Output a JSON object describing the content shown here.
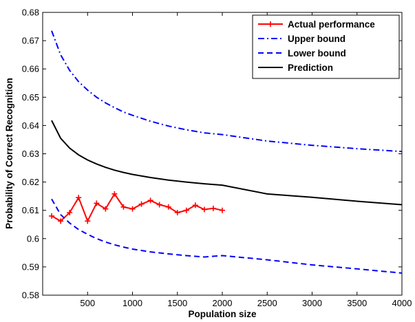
{
  "chart_data": {
    "type": "line",
    "xlabel": "Population size",
    "ylabel": "Probability of Correct Recognition",
    "xlim": [
      0,
      4000
    ],
    "ylim": [
      0.58,
      0.68
    ],
    "x_ticks": [
      500,
      1000,
      1500,
      2000,
      2500,
      3000,
      3500,
      4000
    ],
    "x_tick_labels": [
      "500",
      "1000",
      "1500",
      "2000",
      "2500",
      "3000",
      "3500",
      "4000"
    ],
    "y_ticks": [
      0.58,
      0.59,
      0.6,
      0.61,
      0.62,
      0.63,
      0.64,
      0.65,
      0.66,
      0.67,
      0.68
    ],
    "y_tick_labels": [
      "0.58",
      "0.59",
      "0.6",
      "0.61",
      "0.62",
      "0.63",
      "0.64",
      "0.65",
      "0.66",
      "0.67",
      "0.68"
    ],
    "grid": false,
    "legend_position": "top-right",
    "series": [
      {
        "name": "Actual performance",
        "color": "#ff0000",
        "style": "solid-plus-markers",
        "x": [
          100,
          200,
          300,
          400,
          500,
          600,
          700,
          800,
          900,
          1000,
          1100,
          1200,
          1300,
          1400,
          1500,
          1600,
          1700,
          1800,
          1900,
          2000
        ],
        "y": [
          0.608,
          0.6062,
          0.6092,
          0.6145,
          0.6062,
          0.6125,
          0.6105,
          0.6158,
          0.6112,
          0.6105,
          0.6122,
          0.6135,
          0.612,
          0.6112,
          0.6092,
          0.61,
          0.6118,
          0.6103,
          0.6107,
          0.61
        ]
      },
      {
        "name": "Upper bound",
        "color": "#0000ff",
        "style": "dashdot",
        "x": [
          100,
          200,
          300,
          400,
          500,
          600,
          700,
          800,
          900,
          1000,
          1200,
          1400,
          1600,
          1800,
          2000,
          2500,
          3000,
          3500,
          4000
        ],
        "y": [
          0.6735,
          0.665,
          0.6595,
          0.6555,
          0.6525,
          0.65,
          0.648,
          0.6463,
          0.6448,
          0.6436,
          0.6415,
          0.6398,
          0.6385,
          0.6374,
          0.6368,
          0.6345,
          0.633,
          0.6318,
          0.6308
        ]
      },
      {
        "name": "Lower bound",
        "color": "#0000ff",
        "style": "dashed",
        "x": [
          100,
          200,
          300,
          400,
          500,
          600,
          700,
          800,
          900,
          1000,
          1200,
          1400,
          1600,
          1800,
          2000,
          2500,
          3000,
          3500,
          4000
        ],
        "y": [
          0.614,
          0.6085,
          0.6055,
          0.6032,
          0.6015,
          0.6,
          0.5988,
          0.5978,
          0.597,
          0.5963,
          0.5953,
          0.5946,
          0.594,
          0.5935,
          0.594,
          0.5925,
          0.5907,
          0.5893,
          0.5878
        ]
      },
      {
        "name": "Prediction",
        "color": "#000000",
        "style": "solid",
        "x": [
          100,
          200,
          300,
          400,
          500,
          600,
          700,
          800,
          900,
          1000,
          1200,
          1400,
          1600,
          1800,
          2000,
          2500,
          3000,
          3500,
          4000
        ],
        "y": [
          0.6418,
          0.6355,
          0.632,
          0.6296,
          0.6278,
          0.6264,
          0.6252,
          0.6242,
          0.6234,
          0.6227,
          0.6216,
          0.6207,
          0.62,
          0.6194,
          0.6189,
          0.6158,
          0.6146,
          0.6132,
          0.612
        ]
      }
    ]
  }
}
